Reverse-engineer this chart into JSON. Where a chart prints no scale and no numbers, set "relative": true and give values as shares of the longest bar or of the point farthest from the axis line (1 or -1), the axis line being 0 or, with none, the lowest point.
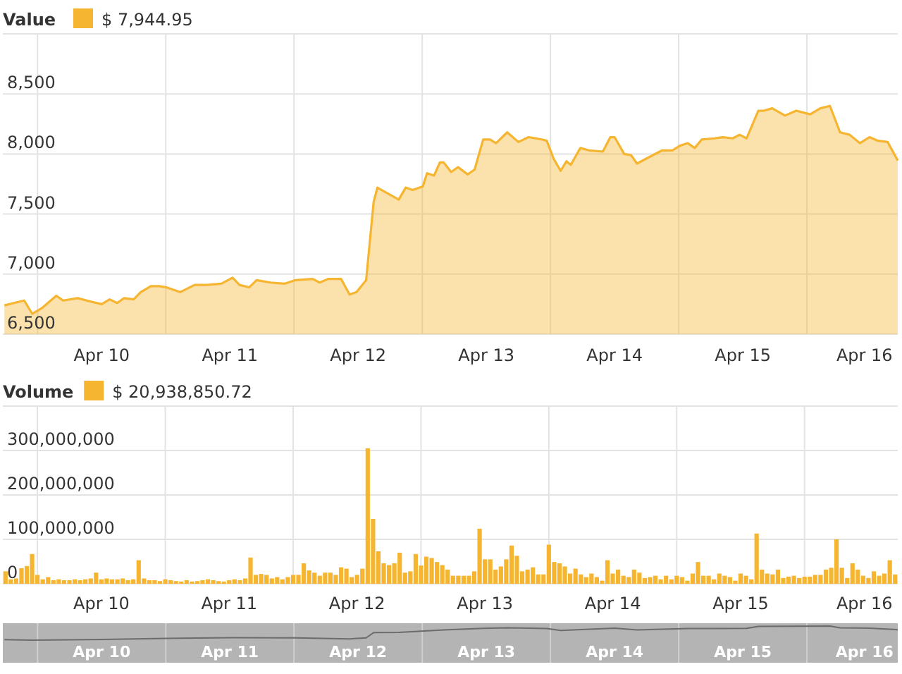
{
  "chart_data": [
    {
      "type": "area",
      "legend_title": "Value",
      "legend": "top left",
      "grid": true,
      "xlim": [
        "--04-09T05:30",
        "--04-16T05:00"
      ],
      "xticks": [
        {
          "value": "--04-09T12:00",
          "label": null
        },
        {
          "value": "--04-10",
          "label": "Apr 10"
        },
        {
          "value": "--04-10T12:00",
          "label": null
        },
        {
          "value": "--04-11",
          "label": "Apr 11"
        },
        {
          "value": "--04-11T12:00",
          "label": null
        },
        {
          "value": "--04-12",
          "label": "Apr 12"
        },
        {
          "value": "--04-12T12:00",
          "label": null
        },
        {
          "value": "--04-13",
          "label": "Apr 13"
        },
        {
          "value": "--04-13T12:00",
          "label": null
        },
        {
          "value": "--04-14",
          "label": "Apr 14"
        },
        {
          "value": "--04-14T12:00",
          "label": null
        },
        {
          "value": "--04-15",
          "label": "Apr 15"
        },
        {
          "value": "--04-15T12:00",
          "label": null
        },
        {
          "value": "--04-16",
          "label": "Apr 16"
        }
      ],
      "ylim": [
        6500,
        9000
      ],
      "yticks": [
        {
          "value": 6500,
          "label": "6,500"
        },
        {
          "value": 7000,
          "label": "7,000"
        },
        {
          "value": 7500,
          "label": "7,500"
        },
        {
          "value": 8000,
          "label": "8,000"
        },
        {
          "value": 8500,
          "label": "8,500"
        },
        {
          "value": 9000,
          "label": null
        }
      ],
      "series": [
        {
          "name": "$ 7,944.95",
          "color": "#f6b530",
          "x": [
            "--04-09T05:48",
            "--04-09T07:36",
            "--04-09T09:30",
            "--04-09T11:00",
            "--04-09T12:54",
            "--04-09T15:30",
            "--04-09T16:48",
            "--04-09T19:30",
            "--04-09T22:06",
            "--04-10T00:00",
            "--04-10T01:30",
            "--04-10T02:54",
            "--04-10T04:12",
            "--04-10T06:00",
            "--04-10T07:18",
            "--04-10T09:12",
            "--04-10T10:48",
            "--04-10T12:06",
            "--04-10T14:42",
            "--04-10T17:24",
            "--04-10T19:42",
            "--04-10T22:24",
            "--04-11T00:30",
            "--04-11T01:48",
            "--04-11T03:36",
            "--04-11T05:00",
            "--04-11T07:36",
            "--04-11T10:12",
            "--04-11T12:18",
            "--04-11T15:30",
            "--04-11T16:48",
            "--04-11T18:24",
            "--04-11T20:48",
            "--04-11T22:24",
            "--04-11T23:42",
            "--04-12T01:30",
            "--04-12T02:54",
            "--04-12T03:36",
            "--04-12T07:36",
            "--04-12T08:54",
            "--04-12T10:12",
            "--04-12T12:06",
            "--04-12T12:54",
            "--04-12T14:12",
            "--04-12T15:18",
            "--04-12T16:00",
            "--04-12T17:24",
            "--04-12T18:42",
            "--04-12T20:30",
            "--04-12T21:48",
            "--04-12T23:24",
            "--04-13T00:42",
            "--04-13T01:48",
            "--04-13T03:54",
            "--04-13T06:00",
            "--04-13T07:54",
            "--04-13T10:30",
            "--04-13T11:18",
            "--04-13T12:36",
            "--04-13T13:54",
            "--04-13T15:00",
            "--04-13T15:48",
            "--04-13T17:36",
            "--04-13T19:12",
            "--04-13T21:48",
            "--04-13T23:12",
            "--04-14T00:00",
            "--04-14T01:48",
            "--04-14T03:06",
            "--04-14T04:12",
            "--04-14T06:18",
            "--04-14T08:54",
            "--04-14T10:48",
            "--04-14T12:18",
            "--04-14T13:42",
            "--04-14T15:00",
            "--04-14T16:18",
            "--04-14T18:42",
            "--04-14T20:18",
            "--04-14T22:06",
            "--04-14T23:24",
            "--04-15T00:42",
            "--04-15T02:54",
            "--04-15T03:54",
            "--04-15T05:30",
            "--04-15T07:54",
            "--04-15T10:00",
            "--04-15T12:36",
            "--04-15T14:30",
            "--04-15T16:18",
            "--04-15T18:12",
            "--04-15T20:00",
            "--04-15T21:54",
            "--04-15T23:42",
            "--04-16T01:18",
            "--04-16T03:06",
            "--04-16T05:00"
          ],
          "values": [
            6740,
            6760,
            6780,
            6670,
            6720,
            6820,
            6780,
            6800,
            6770,
            6750,
            6790,
            6760,
            6800,
            6790,
            6850,
            6900,
            6900,
            6890,
            6850,
            6910,
            6910,
            6920,
            6970,
            6910,
            6890,
            6950,
            6930,
            6920,
            6950,
            6960,
            6930,
            6960,
            6960,
            6830,
            6850,
            6950,
            7600,
            7720,
            7620,
            7720,
            7700,
            7730,
            7840,
            7820,
            7930,
            7930,
            7850,
            7890,
            7830,
            7870,
            8120,
            8120,
            8090,
            8180,
            8100,
            8140,
            8120,
            8110,
            7960,
            7860,
            7940,
            7910,
            8050,
            8030,
            8020,
            8140,
            8140,
            8000,
            7990,
            7920,
            7970,
            8030,
            8030,
            8070,
            8090,
            8050,
            8120,
            8130,
            8140,
            8130,
            8160,
            8130,
            8360,
            8360,
            8380,
            8320,
            8360,
            8330,
            8380,
            8400,
            8180,
            8160,
            8090,
            8140,
            8110,
            8100,
            7944.95
          ]
        }
      ]
    },
    {
      "type": "bar",
      "legend_title": "Volume",
      "legend": "top left",
      "grid": true,
      "categories": [
        null,
        null,
        null,
        null,
        null,
        null,
        null,
        null,
        null,
        null,
        null,
        null,
        null,
        null,
        null,
        null,
        null,
        null,
        "Apr 10",
        null,
        null,
        null,
        null,
        null,
        null,
        null,
        null,
        null,
        null,
        null,
        null,
        null,
        null,
        null,
        null,
        null,
        null,
        null,
        null,
        null,
        null,
        null,
        "Apr 11",
        null,
        null,
        null,
        null,
        null,
        null,
        null,
        null,
        null,
        null,
        null,
        null,
        null,
        null,
        null,
        null,
        null,
        null,
        null,
        null,
        null,
        null,
        null,
        "Apr 12",
        null,
        null,
        null,
        null,
        null,
        null,
        null,
        null,
        null,
        null,
        null,
        null,
        null,
        null,
        null,
        null,
        null,
        null,
        null,
        null,
        null,
        null,
        null,
        "Apr 13",
        null,
        null,
        null,
        null,
        null,
        null,
        null,
        null,
        null,
        null,
        null,
        null,
        null,
        null,
        null,
        null,
        null,
        null,
        null,
        null,
        null,
        null,
        null,
        "Apr 14",
        null,
        null,
        null,
        null,
        null,
        null,
        null,
        null,
        null,
        null,
        null,
        null,
        null,
        null,
        null,
        null,
        null,
        null,
        null,
        null,
        null,
        null,
        null,
        "Apr 15",
        null,
        null,
        null,
        null,
        null,
        null,
        null,
        null,
        null,
        null,
        null,
        null,
        null,
        null,
        null,
        null,
        null,
        null,
        null,
        null,
        null,
        null,
        null,
        "Apr 16",
        null,
        null,
        null,
        null,
        null
      ],
      "ylim": [
        0,
        400000000
      ],
      "yticks": [
        0,
        {
          "value": 100000000,
          "label": "100,000,000"
        },
        {
          "value": 200000000,
          "label": "200,000,000"
        },
        {
          "value": 300000000,
          "label": "300,000,000"
        },
        {
          "value": 400000000,
          "label": null
        }
      ],
      "series": [
        {
          "name": "$ 20,938,850.72",
          "color": "#f6b530",
          "values": [
            28000000,
            10000000,
            12000000,
            35000000,
            40000000,
            67000000,
            20000000,
            10000000,
            15000000,
            8000000,
            10000000,
            8000000,
            8000000,
            10000000,
            8000000,
            10000000,
            12000000,
            25000000,
            10000000,
            12000000,
            10000000,
            10000000,
            12000000,
            8000000,
            10000000,
            53000000,
            12000000,
            8000000,
            8000000,
            6000000,
            10000000,
            8000000,
            6000000,
            5000000,
            8000000,
            5000000,
            6000000,
            8000000,
            10000000,
            8000000,
            6000000,
            5000000,
            8000000,
            10000000,
            8000000,
            12000000,
            59000000,
            20000000,
            22000000,
            20000000,
            12000000,
            15000000,
            10000000,
            15000000,
            20000000,
            20000000,
            46000000,
            30000000,
            25000000,
            18000000,
            25000000,
            25000000,
            20000000,
            37000000,
            34000000,
            15000000,
            20000000,
            34000000,
            305000000,
            146000000,
            73000000,
            46000000,
            42000000,
            46000000,
            70000000,
            25000000,
            28000000,
            67000000,
            41000000,
            61000000,
            58000000,
            49000000,
            42000000,
            32000000,
            18000000,
            18000000,
            18000000,
            18000000,
            28000000,
            124000000,
            55000000,
            55000000,
            32000000,
            39000000,
            55000000,
            86000000,
            63000000,
            28000000,
            32000000,
            37000000,
            21000000,
            21000000,
            88000000,
            49000000,
            46000000,
            39000000,
            23000000,
            34000000,
            21000000,
            15000000,
            23000000,
            15000000,
            7000000,
            53000000,
            23000000,
            32000000,
            18000000,
            15000000,
            32000000,
            25000000,
            13000000,
            15000000,
            18000000,
            10000000,
            18000000,
            10000000,
            18000000,
            15000000,
            7000000,
            23000000,
            49000000,
            18000000,
            18000000,
            10000000,
            23000000,
            18000000,
            15000000,
            7000000,
            23000000,
            18000000,
            10000000,
            113000000,
            32000000,
            23000000,
            21000000,
            32000000,
            13000000,
            16000000,
            18000000,
            13000000,
            16000000,
            16000000,
            20000000,
            20000000,
            32000000,
            36000000,
            100000000,
            36000000,
            13000000,
            46000000,
            32000000,
            18000000,
            13000000,
            28000000,
            18000000,
            23000000,
            53000000,
            20938850.72
          ]
        }
      ]
    },
    {
      "type": "line",
      "relative": true,
      "grid": "x",
      "xlim": [
        "--04-09T05:30",
        "--04-16T05:00"
      ],
      "xticks": [
        {
          "value": "--04-09T12:00",
          "label": null
        },
        {
          "value": "--04-10",
          "label": "Apr 10"
        },
        {
          "value": "--04-10T12:00",
          "label": null
        },
        {
          "value": "--04-11",
          "label": "Apr 11"
        },
        {
          "value": "--04-11T12:00",
          "label": null
        },
        {
          "value": "--04-12",
          "label": "Apr 12"
        },
        {
          "value": "--04-12T12:00",
          "label": null
        },
        {
          "value": "--04-13",
          "label": "Apr 13"
        },
        {
          "value": "--04-13T12:00",
          "label": null
        },
        {
          "value": "--04-14",
          "label": "Apr 14"
        },
        {
          "value": "--04-14T12:00",
          "label": null
        },
        {
          "value": "--04-15",
          "label": "Apr 15"
        },
        {
          "value": "--04-15T12:00",
          "label": null
        },
        {
          "value": "--04-16",
          "label": "Apr 16"
        }
      ],
      "series": [
        {
          "color": "#6b6b6b",
          "x": [
            "--04-09T05:48",
            "--04-09T11:00",
            "--04-10T00:00",
            "--04-10T12:06",
            "--04-11T00:30",
            "--04-11T12:18",
            "--04-11T22:24",
            "--04-12T01:30",
            "--04-12T02:54",
            "--04-12T07:36",
            "--04-12T16:00",
            "--04-12T23:24",
            "--04-13T03:54",
            "--04-13T11:18",
            "--04-13T13:54",
            "--04-14T00:00",
            "--04-14T04:12",
            "--04-14T13:42",
            "--04-15T00:42",
            "--04-15T02:54",
            "--04-15T16:18",
            "--04-15T18:12",
            "--04-15T23:42",
            "--04-16T05:00"
          ],
          "values": [
            0.04,
            0,
            0.05,
            0.13,
            0.18,
            0.16,
            0.09,
            0.16,
            0.54,
            0.55,
            0.73,
            0.84,
            0.88,
            0.83,
            0.69,
            0.85,
            0.72,
            0.82,
            0.84,
            0.97,
            1,
            0.87,
            0.85,
            0.74
          ]
        }
      ]
    }
  ]
}
